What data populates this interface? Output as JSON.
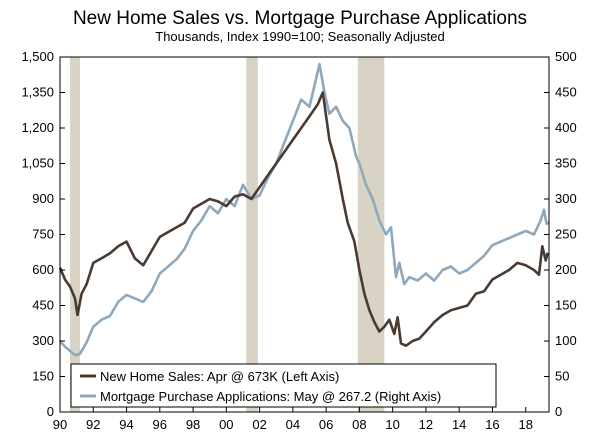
{
  "chart_data": {
    "type": "line",
    "title": "New Home Sales vs. Mortgage Purchase Applications",
    "subtitle": "Thousands, Index 1990=100;  Seasonally Adjusted",
    "x_ticks": [
      "90",
      "92",
      "94",
      "96",
      "98",
      "00",
      "02",
      "04",
      "06",
      "08",
      "10",
      "12",
      "14",
      "16",
      "18"
    ],
    "x_tick_years": [
      1990,
      1992,
      1994,
      1996,
      1998,
      2000,
      2002,
      2004,
      2006,
      2008,
      2010,
      2012,
      2014,
      2016,
      2018
    ],
    "xlim": [
      1990,
      2019.4
    ],
    "y_left_ticks": [
      "0",
      "150",
      "300",
      "450",
      "600",
      "750",
      "900",
      "1,050",
      "1,200",
      "1,350",
      "1,500"
    ],
    "y_left_lim": [
      0,
      1500
    ],
    "y_right_ticks": [
      "0",
      "50",
      "100",
      "150",
      "200",
      "250",
      "300",
      "350",
      "400",
      "450",
      "500"
    ],
    "y_right_lim": [
      0,
      500
    ],
    "recessions": [
      [
        1990.6,
        1991.2
      ],
      [
        2001.2,
        2001.9
      ],
      [
        2007.9,
        2009.5
      ]
    ],
    "series": [
      {
        "name": "New Home Sales: Apr @ 673K (Left Axis)",
        "axis": "left",
        "color": "#4a3a30",
        "x": [
          1990.0,
          1990.3,
          1990.6,
          1990.9,
          1991.05,
          1991.3,
          1991.6,
          1992.0,
          1992.5,
          1993.0,
          1993.5,
          1994.0,
          1994.5,
          1995.0,
          1995.5,
          1996.0,
          1996.5,
          1997.0,
          1997.5,
          1998.0,
          1998.5,
          1999.0,
          1999.5,
          2000.0,
          2000.5,
          2001.0,
          2001.5,
          2002.0,
          2002.5,
          2003.0,
          2003.5,
          2004.0,
          2004.5,
          2005.0,
          2005.5,
          2005.8,
          2006.2,
          2006.6,
          2007.0,
          2007.3,
          2007.7,
          2008.0,
          2008.3,
          2008.6,
          2008.9,
          2009.2,
          2009.5,
          2009.8,
          2010.1,
          2010.3,
          2010.5,
          2010.8,
          2011.2,
          2011.6,
          2012.0,
          2012.5,
          2013.0,
          2013.5,
          2014.0,
          2014.5,
          2015.0,
          2015.5,
          2016.0,
          2016.5,
          2017.0,
          2017.5,
          2018.0,
          2018.5,
          2018.8,
          2019.0,
          2019.2,
          2019.33
        ],
        "y": [
          610,
          560,
          530,
          480,
          410,
          500,
          540,
          630,
          650,
          670,
          700,
          720,
          650,
          620,
          680,
          740,
          760,
          780,
          800,
          860,
          880,
          900,
          890,
          870,
          910,
          920,
          900,
          950,
          1000,
          1050,
          1100,
          1150,
          1200,
          1250,
          1300,
          1350,
          1150,
          1050,
          900,
          800,
          720,
          600,
          500,
          430,
          380,
          340,
          360,
          390,
          330,
          400,
          290,
          280,
          300,
          310,
          340,
          380,
          410,
          430,
          440,
          450,
          500,
          510,
          560,
          580,
          600,
          630,
          620,
          600,
          580,
          700,
          640,
          673
        ]
      },
      {
        "name": "Mortgage Purchase Applications: May @ 267.2 (Right Axis)",
        "axis": "right",
        "color": "#8fa8bc",
        "x": [
          1990.0,
          1990.3,
          1990.6,
          1990.9,
          1991.2,
          1991.6,
          1992.0,
          1992.5,
          1993.0,
          1993.5,
          1994.0,
          1994.5,
          1995.0,
          1995.5,
          1996.0,
          1996.5,
          1997.0,
          1997.5,
          1998.0,
          1998.5,
          1999.0,
          1999.5,
          2000.0,
          2000.5,
          2001.0,
          2001.5,
          2002.0,
          2002.5,
          2003.0,
          2003.5,
          2004.0,
          2004.5,
          2005.0,
          2005.3,
          2005.6,
          2005.9,
          2006.2,
          2006.6,
          2007.0,
          2007.4,
          2007.8,
          2008.0,
          2008.4,
          2008.8,
          2009.2,
          2009.6,
          2009.9,
          2010.2,
          2010.4,
          2010.7,
          2011.0,
          2011.5,
          2012.0,
          2012.5,
          2013.0,
          2013.5,
          2014.0,
          2014.5,
          2015.0,
          2015.5,
          2016.0,
          2016.5,
          2017.0,
          2017.5,
          2018.0,
          2018.5,
          2018.9,
          2019.1,
          2019.25,
          2019.42
        ],
        "y": [
          100,
          92,
          86,
          80,
          82,
          98,
          120,
          130,
          135,
          155,
          165,
          160,
          155,
          170,
          195,
          205,
          215,
          230,
          255,
          270,
          290,
          280,
          300,
          290,
          320,
          300,
          305,
          330,
          350,
          380,
          410,
          440,
          430,
          460,
          490,
          450,
          420,
          430,
          410,
          400,
          360,
          350,
          320,
          300,
          270,
          250,
          260,
          190,
          210,
          180,
          190,
          185,
          195,
          185,
          200,
          205,
          195,
          200,
          210,
          220,
          235,
          240,
          245,
          250,
          255,
          250,
          270,
          285,
          265,
          267.2
        ]
      }
    ],
    "legend_position": "bottom-left",
    "grid": false
  }
}
